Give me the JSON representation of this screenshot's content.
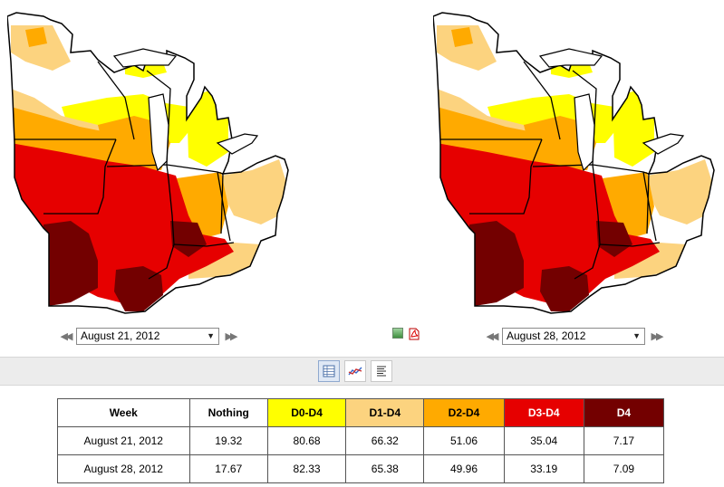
{
  "maps": {
    "left": {
      "selected_date": "August 21, 2012"
    },
    "right": {
      "selected_date": "August 28, 2012"
    }
  },
  "colors": {
    "nothing": "#ffffff",
    "d0": "#ffff00",
    "d1": "#fcd37f",
    "d2": "#ffaa00",
    "d3": "#e60000",
    "d4": "#730000"
  },
  "toolbar": {
    "icons": [
      "table-view-icon",
      "chart-view-icon",
      "text-view-icon"
    ]
  },
  "table": {
    "headers": [
      "Week",
      "Nothing",
      "D0-D4",
      "D1-D4",
      "D2-D4",
      "D3-D4",
      "D4"
    ],
    "rows": [
      [
        "August 21, 2012",
        "19.32",
        "80.68",
        "66.32",
        "51.06",
        "35.04",
        "7.17"
      ],
      [
        "August 28, 2012",
        "17.67",
        "82.33",
        "65.38",
        "49.96",
        "33.19",
        "7.09"
      ]
    ]
  }
}
